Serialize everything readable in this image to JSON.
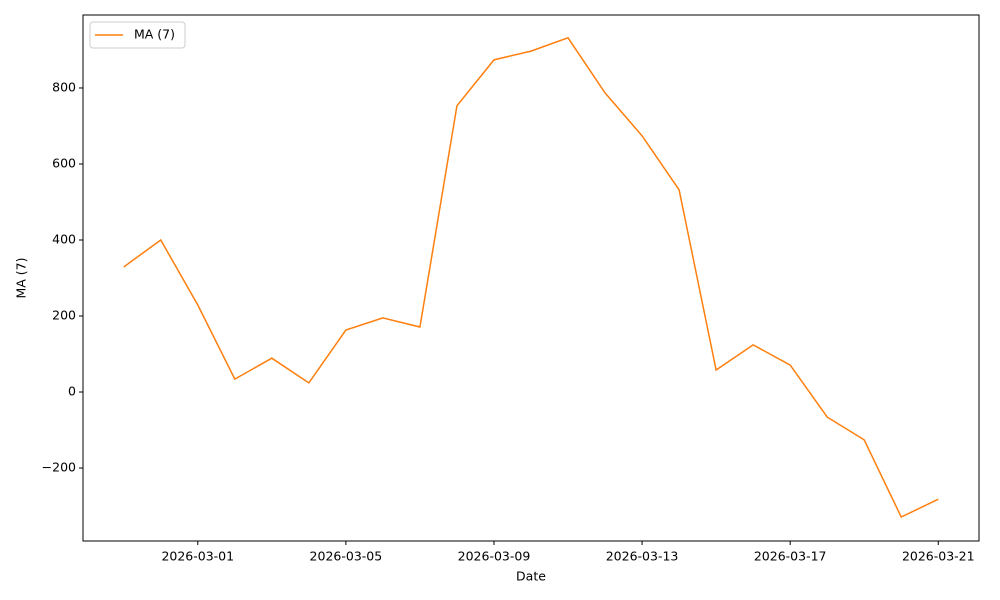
{
  "chart_data": {
    "type": "line",
    "x": [
      "2026-02-27",
      "2026-02-28",
      "2026-03-01",
      "2026-03-02",
      "2026-03-03",
      "2026-03-04",
      "2026-03-05",
      "2026-03-06",
      "2026-03-07",
      "2026-03-08",
      "2026-03-09",
      "2026-03-10",
      "2026-03-11",
      "2026-03-12",
      "2026-03-13",
      "2026-03-14",
      "2026-03-15",
      "2026-03-16",
      "2026-03-17",
      "2026-03-18",
      "2026-03-19",
      "2026-03-20",
      "2026-03-21"
    ],
    "series": [
      {
        "name": "MA (7)",
        "color": "#ff7f0e",
        "values": [
          329,
          400,
          229,
          34,
          89,
          24,
          163,
          195,
          171,
          753,
          874,
          897,
          932,
          787,
          674,
          532,
          58,
          124,
          71,
          -66,
          -126,
          -329,
          -282
        ]
      }
    ],
    "xlabel": "Date",
    "ylabel": "MA (7)",
    "xlim": [
      "2026-02-25T21:36:00Z",
      "2026-03-22T02:24:00Z"
    ],
    "xticks": [
      "2026-03-01",
      "2026-03-05",
      "2026-03-09",
      "2026-03-13",
      "2026-03-17",
      "2026-03-21"
    ],
    "ylim": [
      -392,
      992
    ],
    "yticks": [
      {
        "value": -200,
        "label": "−200"
      },
      0,
      200,
      400,
      600,
      800
    ],
    "legend": "upper left",
    "grid": false
  }
}
